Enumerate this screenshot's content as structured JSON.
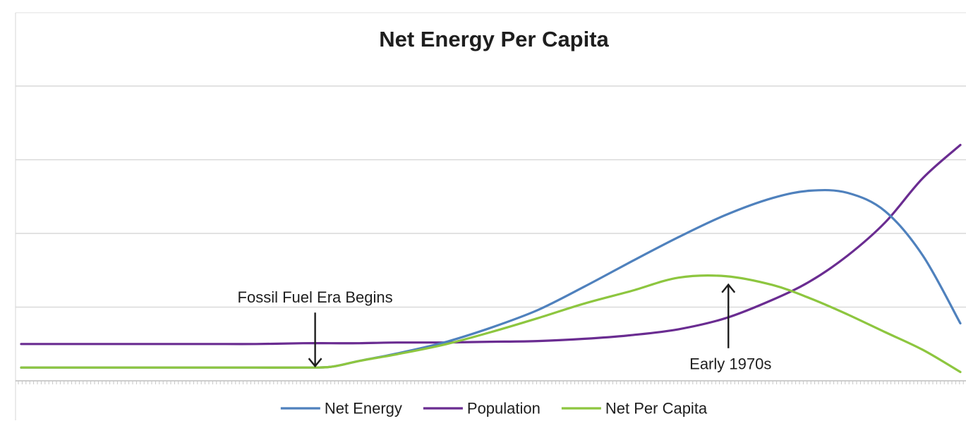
{
  "chart_data": {
    "type": "line",
    "title": "Net Energy Per Capita",
    "xlabel": "",
    "ylabel": "",
    "xlim": [
      0,
      100
    ],
    "ylim": [
      0,
      4
    ],
    "grid": true,
    "legend_position": "bottom",
    "x": [
      0,
      5,
      10,
      15,
      20,
      25,
      30,
      33,
      36,
      40,
      45,
      50,
      55,
      60,
      65,
      70,
      75,
      80,
      84,
      88,
      92,
      96,
      100
    ],
    "series": [
      {
        "name": "Net Energy",
        "color": "#4f81bd",
        "values": [
          0.18,
          0.18,
          0.18,
          0.18,
          0.18,
          0.18,
          0.18,
          0.19,
          0.27,
          0.37,
          0.52,
          0.72,
          0.96,
          1.28,
          1.62,
          1.95,
          2.25,
          2.48,
          2.58,
          2.55,
          2.3,
          1.7,
          0.78
        ]
      },
      {
        "name": "Population",
        "color": "#6a2c91",
        "values": [
          0.5,
          0.5,
          0.5,
          0.5,
          0.5,
          0.5,
          0.51,
          0.51,
          0.51,
          0.52,
          0.52,
          0.53,
          0.54,
          0.57,
          0.62,
          0.7,
          0.85,
          1.1,
          1.35,
          1.7,
          2.15,
          2.75,
          3.2
        ]
      },
      {
        "name": "Net Per Capita",
        "color": "#8dc63f",
        "values": [
          0.18,
          0.18,
          0.18,
          0.18,
          0.18,
          0.18,
          0.18,
          0.19,
          0.27,
          0.36,
          0.49,
          0.66,
          0.85,
          1.05,
          1.22,
          1.4,
          1.42,
          1.3,
          1.12,
          0.9,
          0.66,
          0.42,
          0.12
        ]
      }
    ],
    "annotations": [
      {
        "text": "Fossil Fuel Era Begins",
        "x": 31.3,
        "y": 0.18,
        "arrow": "down"
      },
      {
        "text": "Early 1970s",
        "x": 75.3,
        "y": 1.4,
        "arrow": "up"
      }
    ]
  }
}
